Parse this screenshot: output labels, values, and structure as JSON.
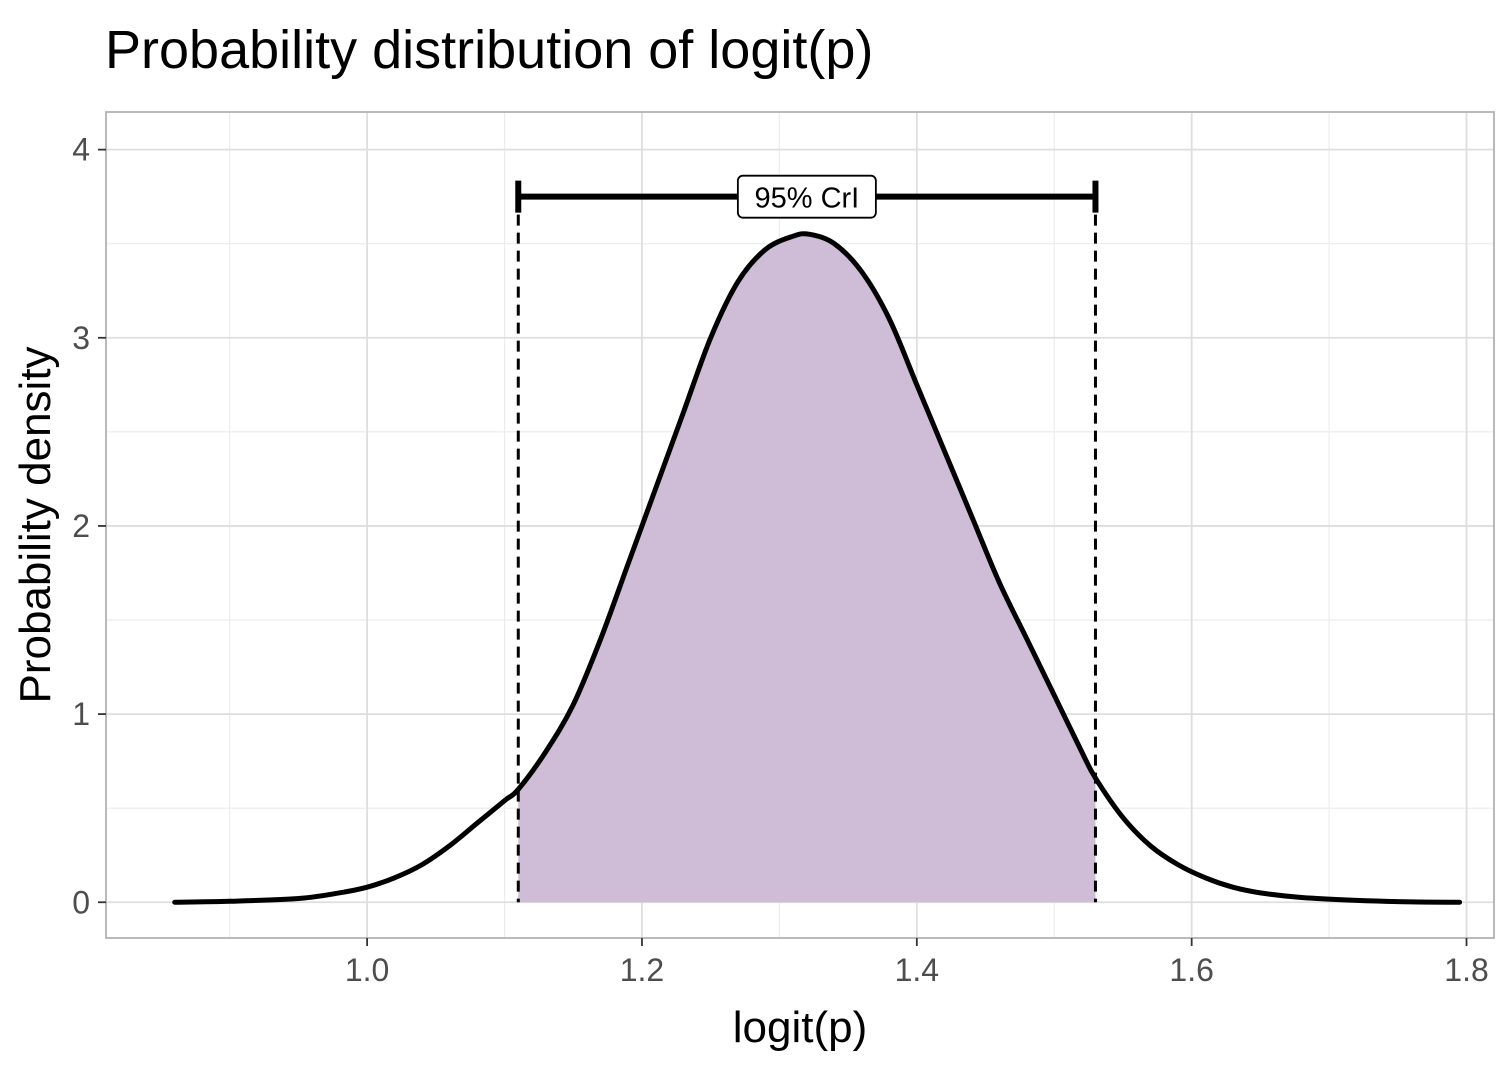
{
  "chart_data": {
    "type": "area",
    "title": "Probability distribution of logit(p)",
    "xlabel": "logit(p)",
    "ylabel": "Probability density",
    "xlim": [
      0.81,
      1.82
    ],
    "ylim": [
      -0.19,
      4.2
    ],
    "x_ticks": [
      1.0,
      1.2,
      1.4,
      1.6,
      1.8
    ],
    "x_tick_labels": [
      "1.0",
      "1.2",
      "1.4",
      "1.6",
      "1.8"
    ],
    "y_ticks": [
      0,
      1,
      2,
      3,
      4
    ],
    "y_tick_labels": [
      "0",
      "1",
      "2",
      "3",
      "4"
    ],
    "grid": true,
    "series": [
      {
        "x": [
          0.86,
          0.9,
          0.95,
          0.98,
          1.0,
          1.02,
          1.04,
          1.06,
          1.08,
          1.1,
          1.11,
          1.13,
          1.15,
          1.17,
          1.19,
          1.21,
          1.23,
          1.25,
          1.27,
          1.29,
          1.31,
          1.322,
          1.34,
          1.36,
          1.38,
          1.4,
          1.42,
          1.44,
          1.46,
          1.48,
          1.5,
          1.52,
          1.53,
          1.55,
          1.57,
          1.59,
          1.61,
          1.63,
          1.65,
          1.68,
          1.72,
          1.76,
          1.795
        ],
        "y": [
          0.0,
          0.005,
          0.02,
          0.05,
          0.08,
          0.13,
          0.2,
          0.3,
          0.42,
          0.54,
          0.6,
          0.8,
          1.05,
          1.4,
          1.8,
          2.2,
          2.6,
          3.0,
          3.3,
          3.47,
          3.54,
          3.55,
          3.5,
          3.35,
          3.1,
          2.75,
          2.4,
          2.05,
          1.7,
          1.4,
          1.1,
          0.8,
          0.66,
          0.45,
          0.3,
          0.2,
          0.13,
          0.08,
          0.05,
          0.025,
          0.01,
          0.002,
          0.0
        ]
      }
    ],
    "credible_interval": {
      "label": "95% CrI",
      "lower": 1.11,
      "upper": 1.53,
      "bar_y": 3.75,
      "fill_color": "#cfbcd7"
    },
    "colors": {
      "curve": "#000000",
      "fill": "#cfbcd7",
      "grid": "#dedede",
      "border": "#b3b3b3"
    }
  }
}
